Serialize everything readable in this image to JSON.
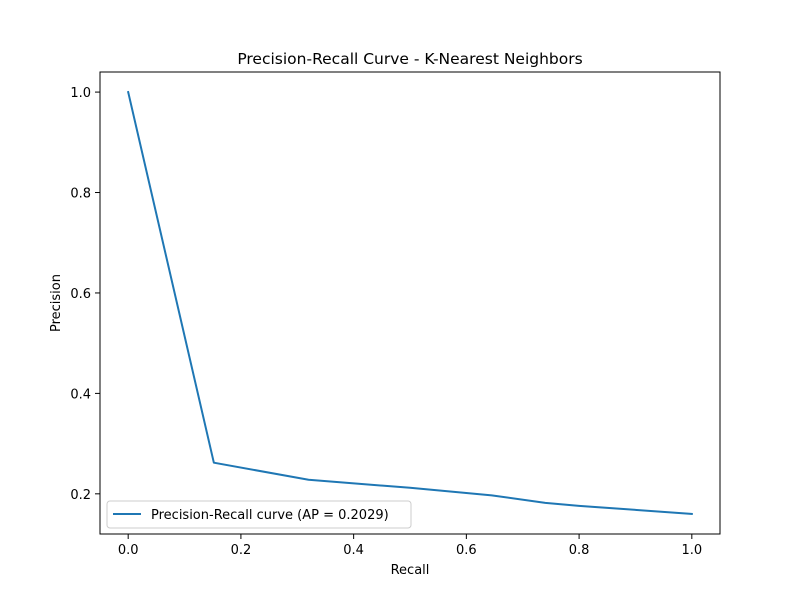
{
  "chart_data": {
    "type": "line",
    "title": "Precision-Recall Curve - K-Nearest Neighbors",
    "xlabel": "Recall",
    "ylabel": "Precision",
    "xlim": [
      -0.05,
      1.05
    ],
    "ylim": [
      0.12,
      1.04
    ],
    "xticks": [
      0.0,
      0.2,
      0.4,
      0.6,
      0.8,
      1.0
    ],
    "xtick_labels": [
      "0.0",
      "0.2",
      "0.4",
      "0.6",
      "0.8",
      "1.0"
    ],
    "yticks": [
      0.2,
      0.4,
      0.6,
      0.8,
      1.0
    ],
    "ytick_labels": [
      "0.2",
      "0.4",
      "0.6",
      "0.8",
      "1.0"
    ],
    "grid": false,
    "legend_position": "lower-left",
    "series": [
      {
        "name": "Precision-Recall curve (AP = 0.2029)",
        "color": "#1f77b4",
        "x": [
          0.0,
          0.152,
          0.32,
          0.5,
          0.645,
          0.74,
          0.8,
          1.0
        ],
        "y": [
          1.0,
          0.262,
          0.228,
          0.212,
          0.197,
          0.182,
          0.176,
          0.16
        ]
      }
    ]
  }
}
